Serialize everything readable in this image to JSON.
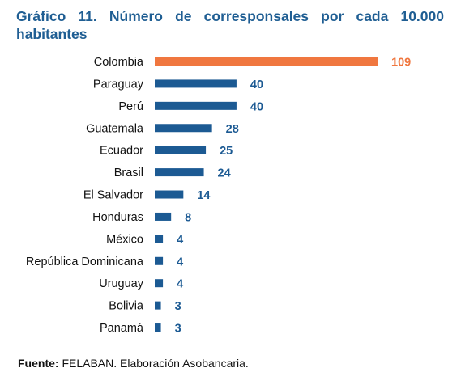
{
  "title_line1": "Gráfico 11. Número de corresponsales por cada 10.000",
  "title_line2": "habitantes",
  "source_label": "Fuente:",
  "source_text": " FELABAN. Elaboración Asobancaria.",
  "colors": {
    "title": "#1f5e93",
    "bar": "#1c5a93",
    "highlight": "#f0773f",
    "label_text": "#111111"
  },
  "chart_data": {
    "type": "bar",
    "orientation": "horizontal",
    "categories": [
      "Colombia",
      "Paraguay",
      "Perú",
      "Guatemala",
      "Ecuador",
      "Brasil",
      "El Salvador",
      "Honduras",
      "México",
      "República Dominicana",
      "Uruguay",
      "Bolivia",
      "Panamá"
    ],
    "values": [
      109,
      40,
      40,
      28,
      25,
      24,
      14,
      8,
      4,
      4,
      4,
      3,
      3
    ],
    "highlight_index": 0,
    "data_labels": true,
    "grid": false,
    "legend": "none"
  }
}
